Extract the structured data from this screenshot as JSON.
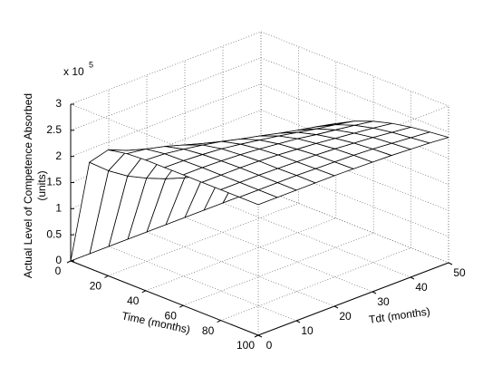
{
  "chart_data": {
    "type": "surface",
    "xlabel": "Time (months)",
    "ylabel": "Tdt (months)",
    "zlabel": [
      "Actual Level of Competence Absorbed",
      "(units)"
    ],
    "z_multiplier": {
      "base": "x 10",
      "exponent": "5"
    },
    "x": [
      0,
      10,
      20,
      30,
      40,
      50,
      60,
      70,
      80,
      90,
      100
    ],
    "y": [
      0,
      5,
      10,
      15,
      20,
      25,
      30,
      35,
      40,
      45,
      50
    ],
    "z": [
      [
        0,
        2.03,
        2.41,
        2.48,
        2.5,
        2.5,
        2.5,
        2.5,
        2.5,
        2.5,
        2.5
      ],
      [
        0,
        1.73,
        2.26,
        2.43,
        2.48,
        2.49,
        2.5,
        2.5,
        2.5,
        2.5,
        2.5
      ],
      [
        0,
        1.49,
        2.1,
        2.34,
        2.43,
        2.47,
        2.49,
        2.5,
        2.5,
        2.5,
        2.5
      ],
      [
        0,
        1.31,
        1.93,
        2.23,
        2.37,
        2.44,
        2.47,
        2.49,
        2.49,
        2.5,
        2.5
      ],
      [
        0,
        1.16,
        1.78,
        2.12,
        2.3,
        2.39,
        2.44,
        2.47,
        2.48,
        2.49,
        2.5
      ],
      [
        0,
        1.04,
        1.65,
        2.01,
        2.21,
        2.33,
        2.4,
        2.44,
        2.47,
        2.48,
        2.49
      ],
      [
        0,
        0.95,
        1.54,
        1.9,
        2.13,
        2.27,
        2.36,
        2.41,
        2.45,
        2.47,
        2.48
      ],
      [
        0,
        0.87,
        1.43,
        1.8,
        2.04,
        2.2,
        2.3,
        2.37,
        2.42,
        2.45,
        2.47
      ],
      [
        0,
        0.8,
        1.34,
        1.71,
        1.96,
        2.13,
        2.25,
        2.33,
        2.39,
        2.42,
        2.45
      ],
      [
        0,
        0.74,
        1.26,
        1.63,
        1.89,
        2.07,
        2.2,
        2.29,
        2.35,
        2.39,
        2.43
      ],
      [
        0,
        0.69,
        1.19,
        1.55,
        1.81,
        2.0,
        2.14,
        2.24,
        2.31,
        2.36,
        2.4
      ]
    ],
    "xlim": [
      0,
      100
    ],
    "xticks": [
      0,
      20,
      40,
      60,
      80,
      100
    ],
    "ylim": [
      0,
      50
    ],
    "yticks": [
      0,
      10,
      20,
      30,
      40,
      50
    ],
    "zlim": [
      0,
      3
    ],
    "zticks": [
      0,
      0.5,
      1,
      1.5,
      2,
      2.5,
      3
    ],
    "grid": true,
    "mesh_color": "#000000",
    "face_color": "#ffffff"
  }
}
